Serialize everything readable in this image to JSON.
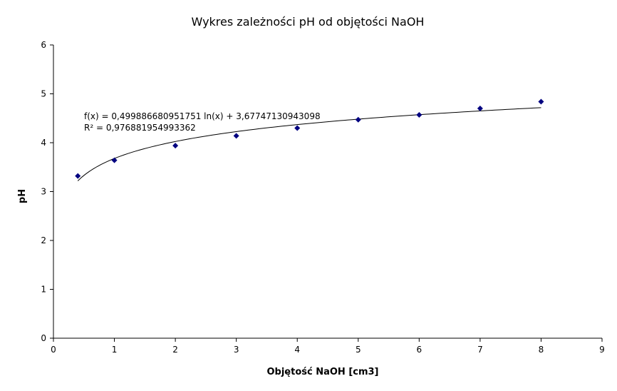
{
  "chart_data": {
    "type": "scatter",
    "title": "Wykres zależności pH od objętości NaOH",
    "xlabel": "Objętość NaOH [cm3]",
    "ylabel": "pH",
    "xlim": [
      0,
      9
    ],
    "ylim": [
      0,
      6
    ],
    "xticks": [
      "0",
      "1",
      "2",
      "3",
      "4",
      "5",
      "6",
      "7",
      "8",
      "9"
    ],
    "yticks": [
      "0",
      "1",
      "2",
      "3",
      "4",
      "5",
      "6"
    ],
    "grid": false,
    "legend": "none",
    "marker_color": "#000080",
    "trendline_color": "#000000",
    "series": [
      {
        "x": [
          0.4,
          1,
          2,
          3,
          4,
          5,
          6,
          7,
          8
        ],
        "y": [
          3.32,
          3.64,
          3.94,
          4.14,
          4.3,
          4.47,
          4.57,
          4.7,
          4.84
        ]
      }
    ],
    "trendline": {
      "type": "log",
      "a": 0.499886680951751,
      "b": 3.67747130943098,
      "x_range": [
        0.4,
        8
      ],
      "equation": "f(x) = 0,499886680951751 ln(x) + 3,67747130943098",
      "r2": "R² = 0,976881954993362"
    }
  }
}
